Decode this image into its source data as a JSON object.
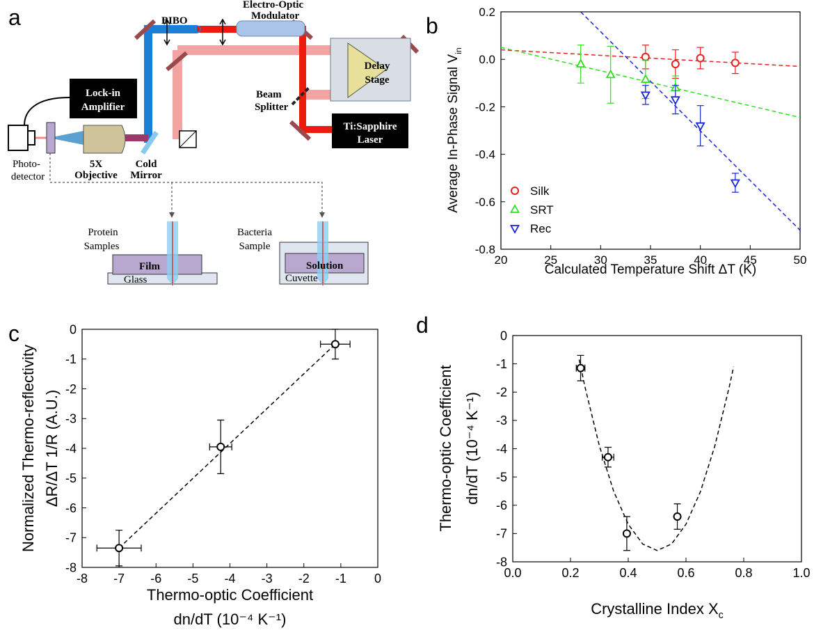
{
  "diagram": {
    "panel": "a",
    "bibo": "BIBO",
    "modulator": [
      "Electro-Optic",
      "Modulator"
    ],
    "lockin": [
      "Lock-in",
      "Amplifier"
    ],
    "delay": [
      "Delay",
      "Stage"
    ],
    "splitter": [
      "Beam",
      "Splitter"
    ],
    "laser": [
      "Ti:Sapphire",
      "Laser"
    ],
    "detector": [
      "Photo-",
      "detector"
    ],
    "objective": [
      "5X",
      "Objective"
    ],
    "mirror": [
      "Cold",
      "Mirror"
    ],
    "protein": [
      "Protein",
      "Samples"
    ],
    "bacteria": [
      "Bacteria",
      "Sample"
    ],
    "film": "Film",
    "glass": "Glass",
    "solution": "Solution",
    "cuvette": "Cuvette"
  },
  "chart_data": [
    {
      "type": "scatter",
      "panel": "b",
      "xlabel": "Calculated Temperature Shift ΔT (K)",
      "ylabel": "Average In-Phase Signal V",
      "ylabel_sub": "in",
      "xlim": [
        20,
        50
      ],
      "ylim": [
        -0.8,
        0.2
      ],
      "xticks": [
        20,
        25,
        30,
        35,
        40,
        45,
        50
      ],
      "yticks": [
        -0.8,
        -0.6,
        -0.4,
        -0.2,
        {
          "value": 0,
          "label": "0.0"
        },
        0.2
      ],
      "legend": "lower left",
      "series": [
        {
          "name": "Silk",
          "color": "#e8201c",
          "marker": "circle",
          "x": [
            34.5,
            37.5,
            40,
            43.5
          ],
          "y": [
            0.01,
            -0.02,
            0.005,
            -0.015
          ],
          "yerr": [
            0.05,
            0.06,
            0.045,
            0.045
          ]
        },
        {
          "name": "SRT",
          "color": "#2ee01c",
          "marker": "triangle-up",
          "x": [
            28,
            31,
            34.5,
            37.5
          ],
          "y": [
            -0.02,
            -0.065,
            -0.085,
            -0.12
          ],
          "yerr": [
            0.08,
            0.12,
            0.08,
            0.05
          ]
        },
        {
          "name": "Rec",
          "color": "#1626d6",
          "marker": "triangle-down",
          "x": [
            34.5,
            37.5,
            40,
            43.5
          ],
          "y": [
            -0.15,
            -0.17,
            -0.28,
            -0.52
          ],
          "yerr": [
            0.04,
            0.06,
            0.085,
            0.04
          ]
        }
      ],
      "fits": [
        {
          "color": "#e8201c",
          "x": [
            20,
            50
          ],
          "y": [
            0.04,
            -0.03
          ]
        },
        {
          "color": "#2ee01c",
          "x": [
            20,
            50
          ],
          "y": [
            0.05,
            -0.245
          ]
        },
        {
          "color": "#1626d6",
          "x": [
            28,
            50
          ],
          "y": [
            0.2,
            -0.72
          ]
        }
      ]
    },
    {
      "type": "scatter",
      "panel": "c",
      "xlabel": [
        "Thermo-optic Coefficient",
        "dn/dT (10⁻⁴ K⁻¹)"
      ],
      "ylabel": [
        "Normalized Thermo-reflectivity",
        "ΔR/ΔT 1/R (A.U.)"
      ],
      "xlim": [
        -8,
        0
      ],
      "ylim": [
        -8,
        0
      ],
      "xticks": [
        -8,
        -7,
        -6,
        -5,
        -4,
        -3,
        -2,
        -1,
        0
      ],
      "yticks": [
        -8,
        -7,
        -6,
        -5,
        -4,
        -3,
        -2,
        -1,
        0
      ],
      "series": [
        {
          "color": "#000000",
          "marker": "circle",
          "x": [
            -7,
            -4.25,
            -1.15
          ],
          "y": [
            -7.35,
            -3.95,
            -0.5
          ],
          "xerr": [
            0.6,
            0.3,
            0.4
          ],
          "yerr": [
            0.6,
            0.9,
            0.5
          ]
        }
      ],
      "fits": [
        {
          "color": "#000000",
          "x": [
            -7,
            -1.15
          ],
          "y": [
            -7.35,
            -0.5
          ]
        }
      ]
    },
    {
      "type": "scatter",
      "panel": "d",
      "xlabel": "Crystalline Index X",
      "xlabel_sub": "c",
      "ylabel": [
        "Thermo-optic Coefficient",
        "dn/dT (10⁻⁴ K⁻¹)"
      ],
      "xlim": [
        0,
        1
      ],
      "ylim": [
        -8,
        0
      ],
      "xticks": [
        {
          "value": 0,
          "label": "0.0"
        },
        0.2,
        0.4,
        0.6,
        0.8,
        {
          "value": 1,
          "label": "1.0"
        }
      ],
      "yticks": [
        -8,
        -7,
        -6,
        -5,
        -4,
        -3,
        -2,
        -1,
        0
      ],
      "series": [
        {
          "color": "#000000",
          "marker": "circle",
          "x": [
            0.235,
            0.33,
            0.395,
            0.57
          ],
          "y": [
            -1.15,
            -4.3,
            -7.0,
            -6.4
          ],
          "xerr": [
            0.015,
            0.02,
            0,
            0
          ],
          "yerr": [
            0.45,
            0.35,
            0.6,
            0.45
          ]
        }
      ],
      "fits": [
        {
          "color": "#000000",
          "x": [
            0.23,
            0.25,
            0.3,
            0.35,
            0.4,
            0.45,
            0.5,
            0.55,
            0.6,
            0.65,
            0.7,
            0.75,
            0.765
          ],
          "y": [
            -0.85,
            -1.81,
            -3.9,
            -5.52,
            -6.67,
            -7.37,
            -7.6,
            -7.37,
            -6.67,
            -5.52,
            -3.9,
            -1.81,
            -1.1
          ]
        }
      ]
    }
  ]
}
